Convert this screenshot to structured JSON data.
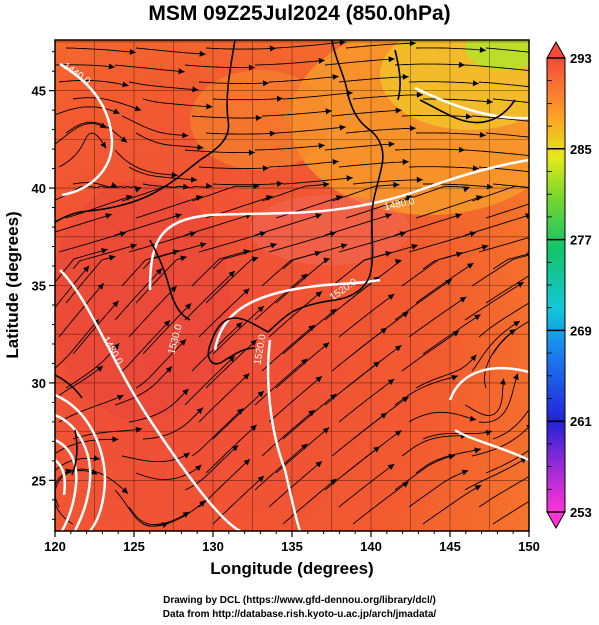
{
  "title": "MSM 09Z25Jul2024 (850.0hPa)",
  "credits": {
    "drawing": "Drawing by DCL (https://www.gfd-dennou.org/library/dcl/)",
    "data": "Data from http://database.rish.kyoto-u.ac.jp/arch/jmadata/"
  },
  "chart_data": {
    "type": "heatmap",
    "title": "MSM 09Z25Jul2024 (850.0hPa)",
    "xlabel": "Longitude (degrees)",
    "ylabel": "Latitude  (degrees)",
    "xlim": [
      120,
      150
    ],
    "ylim": [
      22.4,
      47.6
    ],
    "x_ticks": [
      120,
      125,
      130,
      135,
      140,
      145,
      150
    ],
    "y_ticks": [
      25,
      30,
      35,
      40,
      45
    ],
    "grid": true,
    "colorbar": {
      "min": 253,
      "max": 293,
      "tick_values": [
        253,
        261,
        269,
        277,
        285,
        293
      ],
      "tick_labels": [
        "253",
        "261",
        "269",
        "277",
        "285",
        "293"
      ]
    },
    "contour_labels": [
      "1440.0",
      "1480.0",
      "1520.0",
      "1530.0"
    ],
    "overlays": [
      "streamlines",
      "geopotential height contours",
      "coastlines"
    ]
  }
}
